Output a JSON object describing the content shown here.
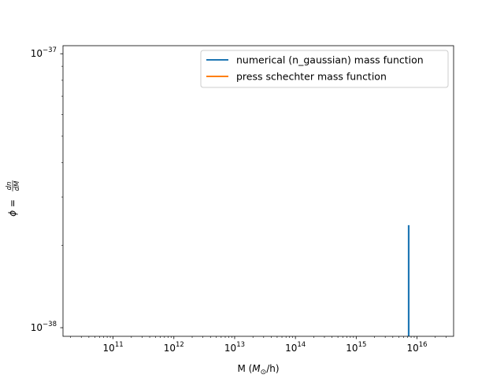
{
  "chart_data": {
    "type": "line",
    "title": "",
    "xlabel": "M ($M_\\odot$/h)",
    "ylabel": "$\\phi = \\frac{dn}{dM}$",
    "x_scale": "log",
    "y_scale": "log",
    "xlim": [
      15000000000.0,
      4e+16
    ],
    "ylim": [
      9.3e-39,
      1.07e-37
    ],
    "x_ticks": [
      {
        "value": 100000000000.0,
        "base": "10",
        "exp": "11"
      },
      {
        "value": 1000000000000.0,
        "base": "10",
        "exp": "12"
      },
      {
        "value": 10000000000000.0,
        "base": "10",
        "exp": "13"
      },
      {
        "value": 100000000000000.0,
        "base": "10",
        "exp": "14"
      },
      {
        "value": 1000000000000000.0,
        "base": "10",
        "exp": "15"
      },
      {
        "value": 1e+16,
        "base": "10",
        "exp": "16"
      }
    ],
    "y_ticks": [
      {
        "value": 1e-38,
        "base": "10",
        "exp": "−38"
      },
      {
        "value": 1e-37,
        "base": "10",
        "exp": "−37"
      }
    ],
    "grid": false,
    "legend_position": "top-right",
    "series": [
      {
        "name": "numerical (n_gaussian) mass function",
        "color": "#1f77b4",
        "x": [
          7300000000000000.0,
          7300000000000000.0
        ],
        "y": [
          8e-39,
          2.35e-38
        ]
      },
      {
        "name": "press schechter mass function",
        "color": "#ff7f0e",
        "x": [],
        "y": []
      }
    ]
  }
}
